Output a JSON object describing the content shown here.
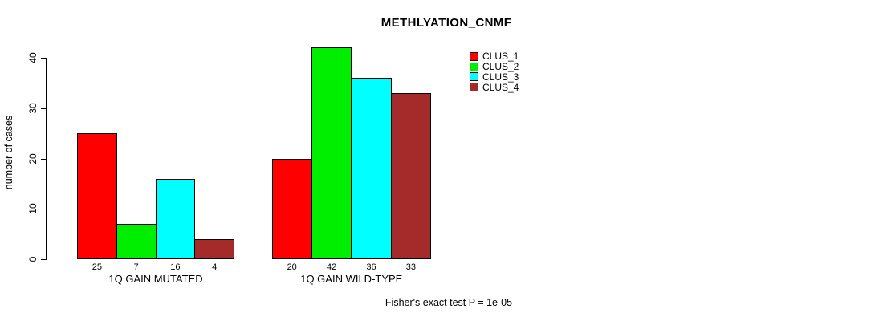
{
  "title": "METHLYATION_CNMF",
  "y_axis": {
    "label": "number of cases",
    "ticks": [
      0,
      10,
      20,
      30,
      40
    ]
  },
  "legend": {
    "items": [
      {
        "label": "CLUS_1",
        "color": "#ff0000"
      },
      {
        "label": "CLUS_2",
        "color": "#00ee00"
      },
      {
        "label": "CLUS_3",
        "color": "#00ffff"
      },
      {
        "label": "CLUS_4",
        "color": "#a52a2a"
      }
    ]
  },
  "footer": "Fisher's exact test P = 1e-05",
  "chart_data": {
    "type": "bar",
    "title": "METHLYATION_CNMF",
    "xlabel": "",
    "ylabel": "number of cases",
    "yticks": [
      0,
      10,
      20,
      30,
      40
    ],
    "ylim": [
      0,
      44
    ],
    "grid": false,
    "legend_position": "top-right",
    "categories": [
      "1Q GAIN MUTATED",
      "1Q GAIN WILD-TYPE"
    ],
    "series": [
      {
        "name": "CLUS_1",
        "color": "#ff0000",
        "values": [
          25,
          20
        ]
      },
      {
        "name": "CLUS_2",
        "color": "#00ee00",
        "values": [
          7,
          42
        ]
      },
      {
        "name": "CLUS_3",
        "color": "#00ffff",
        "values": [
          16,
          36
        ]
      },
      {
        "name": "CLUS_4",
        "color": "#a52a2a",
        "values": [
          4,
          33
        ]
      }
    ],
    "bar_value_labels": [
      [
        25,
        7,
        16,
        4
      ],
      [
        20,
        42,
        36,
        33
      ]
    ],
    "annotation": "Fisher's exact test P = 1e-05"
  }
}
